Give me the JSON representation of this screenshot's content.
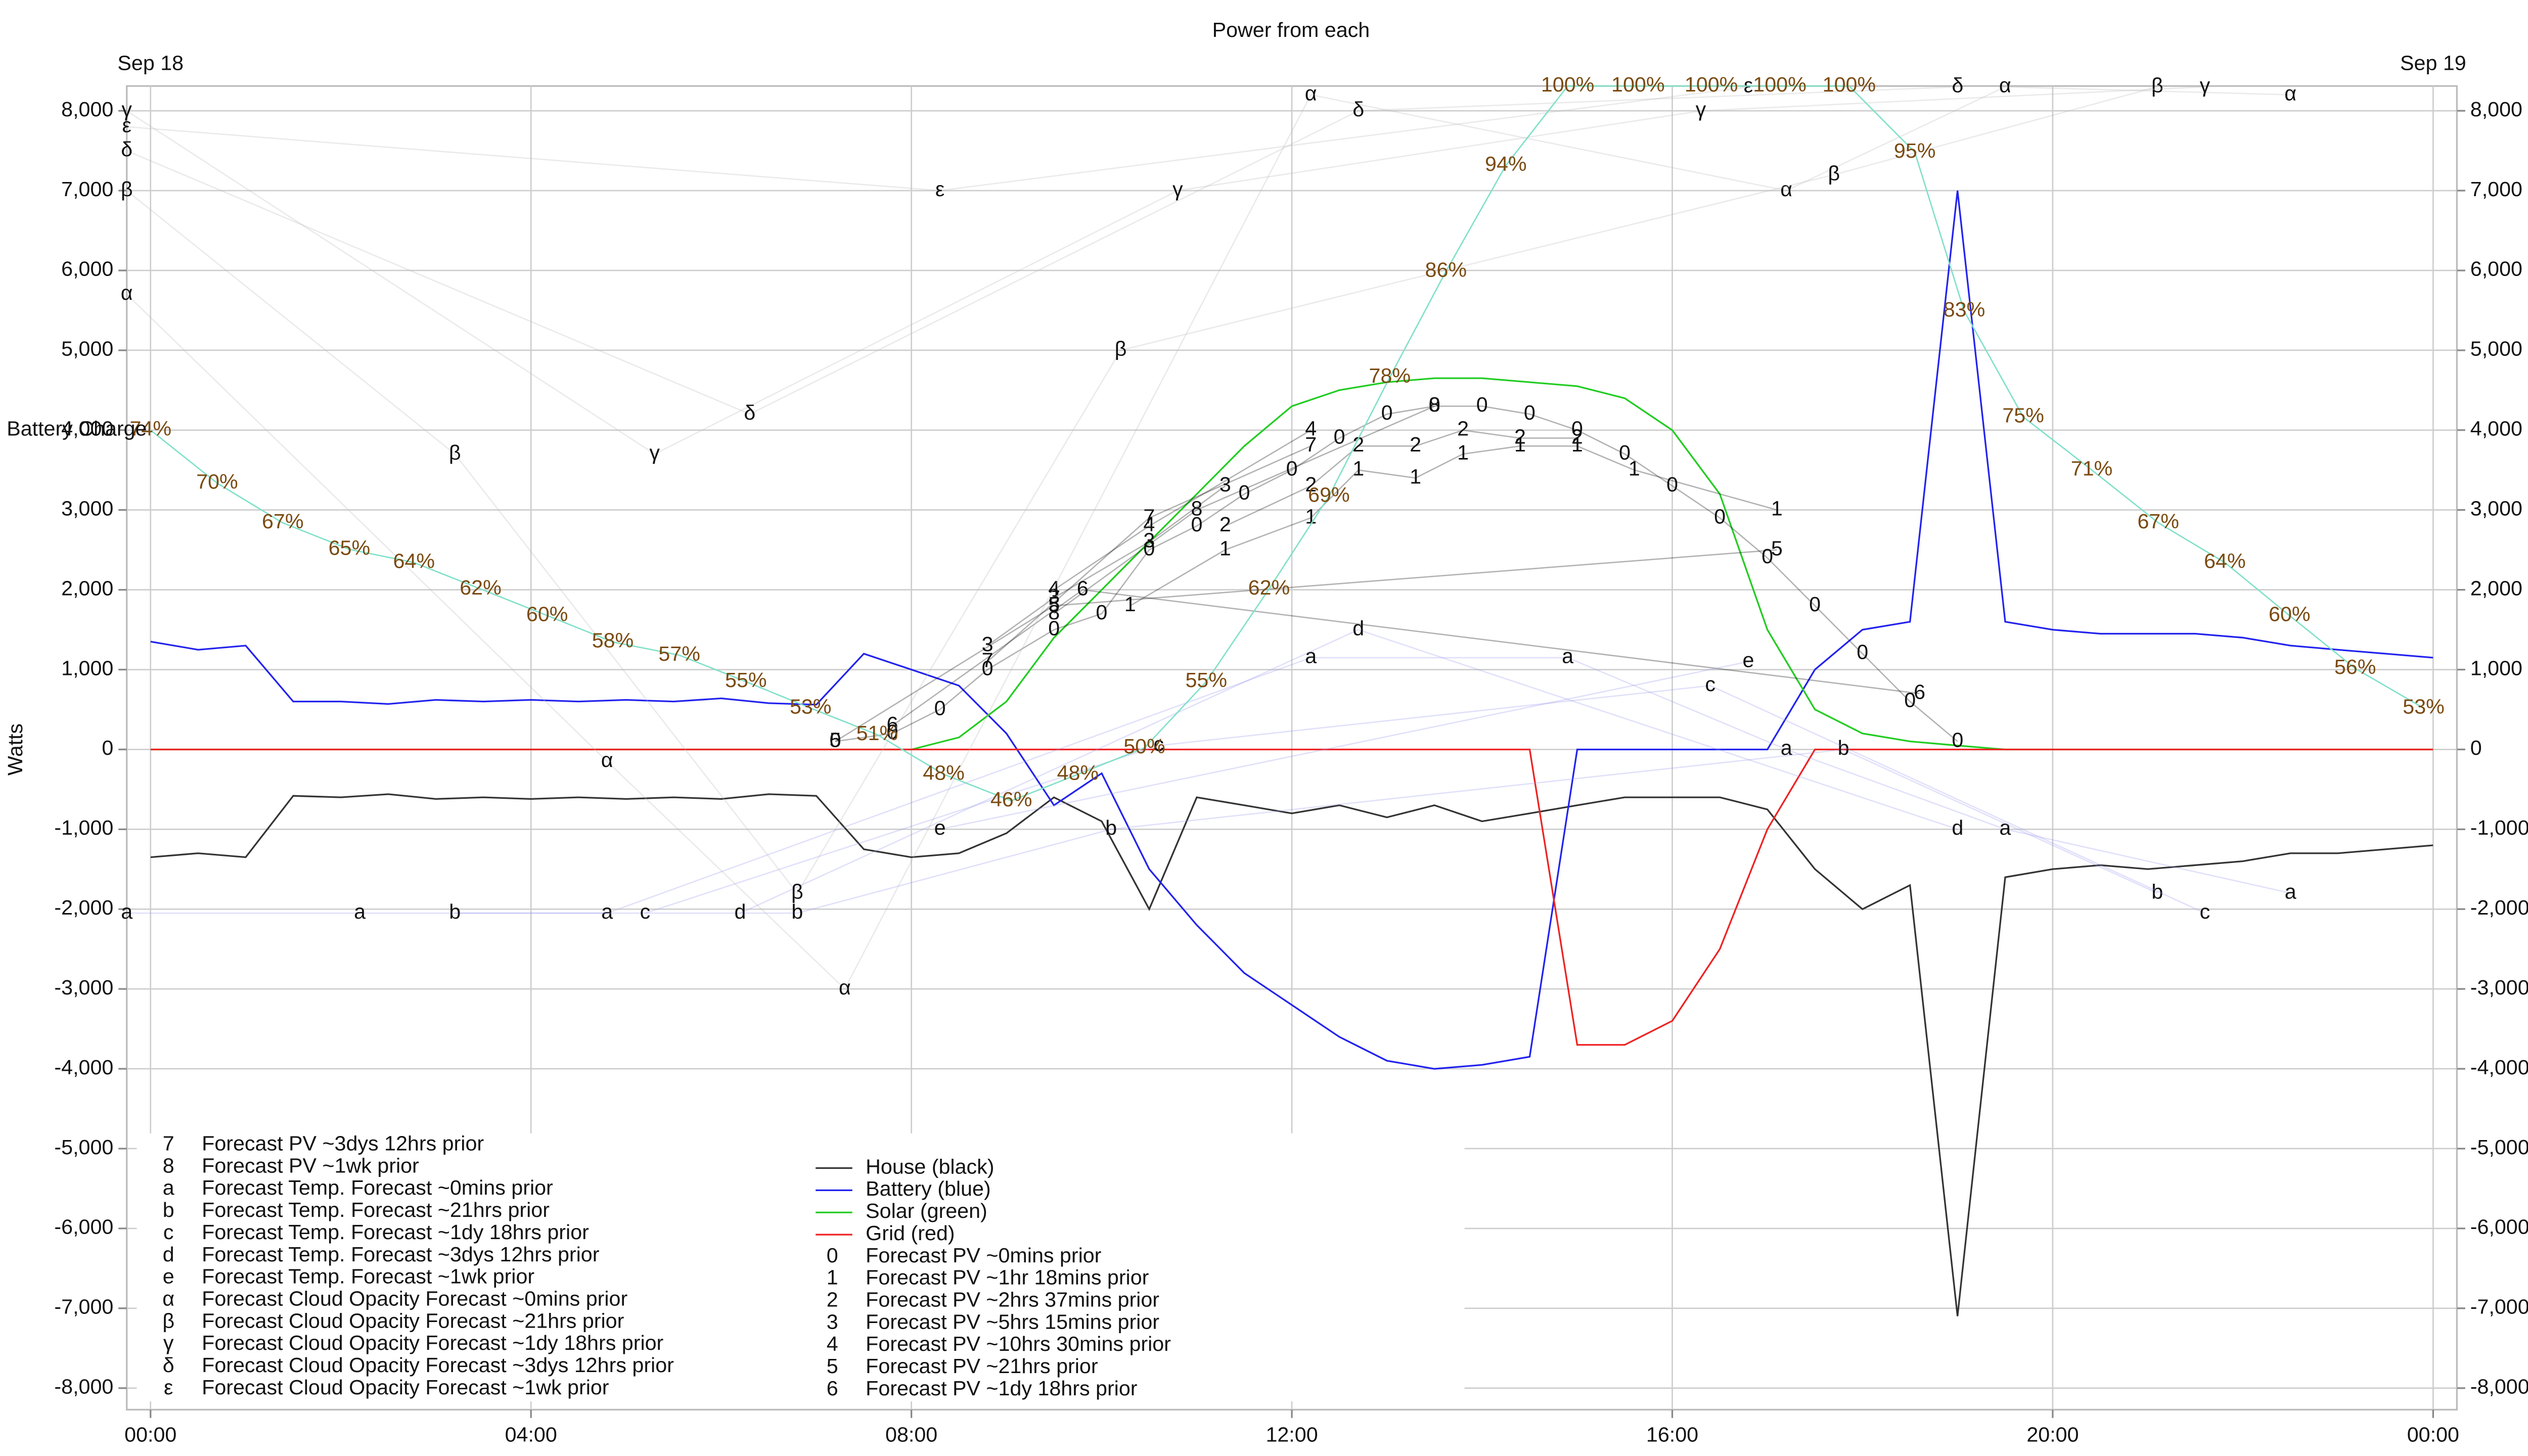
{
  "chart_data": {
    "type": "line",
    "title": "Power from each",
    "ylabel": "Watts",
    "y2label": "Battery Charge",
    "date_labels": [
      {
        "value": 0,
        "label": "Sep 18"
      },
      {
        "value": 24,
        "label": "Sep 19"
      }
    ],
    "xlim": [
      -0.25,
      24.25
    ],
    "xticks": [
      {
        "value": 0,
        "label": "00:00"
      },
      {
        "value": 4,
        "label": "04:00"
      },
      {
        "value": 8,
        "label": "08:00"
      },
      {
        "value": 12,
        "label": "12:00"
      },
      {
        "value": 16,
        "label": "16:00"
      },
      {
        "value": 20,
        "label": "20:00"
      },
      {
        "value": 24,
        "label": "00:00"
      }
    ],
    "ylim": [
      -8270,
      8310
    ],
    "yticks": [
      {
        "value": -8000,
        "label": "-8,000"
      },
      {
        "value": -7000,
        "label": "-7,000"
      },
      {
        "value": -6000,
        "label": "-6,000"
      },
      {
        "value": -5000,
        "label": "-5,000"
      },
      {
        "value": -4000,
        "label": "-4,000"
      },
      {
        "value": -3000,
        "label": "-3,000"
      },
      {
        "value": -2000,
        "label": "-2,000"
      },
      {
        "value": -1000,
        "label": "-1,000"
      },
      0,
      {
        "value": 1000,
        "label": "1,000"
      },
      {
        "value": 2000,
        "label": "2,000"
      },
      {
        "value": 3000,
        "label": "3,000"
      },
      {
        "value": 4000,
        "label": "4,000"
      },
      {
        "value": 5000,
        "label": "5,000"
      },
      {
        "value": 6000,
        "label": "6,000"
      },
      {
        "value": 7000,
        "label": "7,000"
      },
      {
        "value": 8000,
        "label": "8,000"
      }
    ],
    "y2lim": [
      0,
      100
    ],
    "grid": true,
    "x": [
      0,
      0.5,
      1,
      1.5,
      2,
      2.5,
      3,
      3.5,
      4,
      4.5,
      5,
      5.5,
      6,
      6.5,
      7,
      7.5,
      8,
      8.5,
      9,
      9.5,
      10,
      10.5,
      11,
      11.5,
      12,
      12.5,
      13,
      13.5,
      14,
      14.5,
      15,
      15.5,
      16,
      16.5,
      17,
      17.5,
      18,
      18.5,
      19,
      19.5,
      20,
      20.5,
      21,
      21.5,
      22,
      22.5,
      23,
      23.5,
      24
    ],
    "series": [
      {
        "name": "House (black)",
        "color": "#333333",
        "values": [
          -1350,
          -1300,
          -1350,
          -580,
          -600,
          -560,
          -620,
          -600,
          -620,
          -600,
          -620,
          -600,
          -620,
          -560,
          -580,
          -1250,
          -1350,
          -1300,
          -1050,
          -600,
          -900,
          -2000,
          -600,
          -700,
          -800,
          -700,
          -850,
          -700,
          -900,
          -800,
          -700,
          -600,
          -600,
          -600,
          -750,
          -1500,
          -2000,
          -1700,
          -7100,
          -1600,
          -1500,
          -1450,
          -1500,
          -1450,
          -1400,
          -1300,
          -1300,
          -1250,
          -1200
        ]
      },
      {
        "name": "Battery (blue)",
        "color": "#2222ee",
        "values": [
          1350,
          1250,
          1300,
          600,
          600,
          570,
          620,
          600,
          620,
          600,
          620,
          600,
          640,
          580,
          560,
          1200,
          1000,
          800,
          200,
          -700,
          -300,
          -1500,
          -2200,
          -2800,
          -3200,
          -3600,
          -3900,
          -4000,
          -3950,
          -3850,
          0,
          0,
          0,
          0,
          0,
          1000,
          1500,
          1600,
          7000,
          1600,
          1500,
          1450,
          1450,
          1450,
          1400,
          1300,
          1250,
          1200,
          1150
        ]
      },
      {
        "name": "Solar (green)",
        "color": "#22cc22",
        "values": [
          0,
          0,
          0,
          0,
          0,
          0,
          0,
          0,
          0,
          0,
          0,
          0,
          0,
          0,
          0,
          0,
          0,
          150,
          600,
          1400,
          2000,
          2600,
          3200,
          3800,
          4300,
          4500,
          4600,
          4650,
          4650,
          4600,
          4550,
          4400,
          4000,
          3200,
          1500,
          500,
          200,
          100,
          50,
          0,
          0,
          0,
          0,
          0,
          0,
          0,
          0,
          0,
          0
        ]
      },
      {
        "name": "Grid (red)",
        "color": "#ee2222",
        "values": [
          0,
          0,
          0,
          0,
          0,
          0,
          0,
          0,
          0,
          0,
          0,
          0,
          0,
          0,
          0,
          0,
          0,
          0,
          0,
          0,
          0,
          0,
          0,
          0,
          0,
          0,
          0,
          0,
          0,
          0,
          -3700,
          -3700,
          -3400,
          -2500,
          -1000,
          0,
          0,
          0,
          0,
          0,
          0,
          0,
          0,
          0,
          0,
          0,
          0,
          0,
          0
        ]
      },
      {
        "name": "Forecast PV ~0mins prior",
        "symbol": "0",
        "color": "#000000",
        "x": [
          7.2,
          7.8,
          8.3,
          8.8,
          9.5,
          10,
          10.5,
          11,
          11.5,
          12,
          12.5,
          13,
          13.5,
          14,
          14.5,
          15,
          15.5,
          16,
          16.5,
          17,
          17.5,
          18,
          18.5,
          19
        ],
        "values": [
          100,
          200,
          500,
          1000,
          1500,
          1700,
          2500,
          2800,
          3200,
          3500,
          3900,
          4200,
          4300,
          4300,
          4200,
          4000,
          3700,
          3300,
          2900,
          2400,
          1800,
          1200,
          600,
          100
        ]
      },
      {
        "name": "Forecast PV ~1hr 18mins prior",
        "symbol": "1",
        "color": "#000000",
        "x": [
          10.3,
          11.3,
          12.2,
          12.7,
          13.3,
          13.8,
          14.4,
          15,
          15.6,
          17.1
        ],
        "values": [
          1800,
          2500,
          2900,
          3500,
          3400,
          3700,
          3800,
          3800,
          3500,
          3000
        ]
      },
      {
        "name": "Forecast PV ~2hrs 37mins prior",
        "symbol": "2",
        "color": "#000000",
        "x": [
          11.3,
          12.2,
          12.7,
          13.3,
          13.8,
          14.4,
          15
        ],
        "values": [
          2800,
          3300,
          3800,
          3800,
          4000,
          3900,
          3900
        ]
      },
      {
        "name": "Forecast PV ~5hrs 15mins prior",
        "symbol": "3",
        "color": "#000000",
        "x": [
          8.8,
          9.5,
          10.5,
          11.3
        ],
        "values": [
          1300,
          1900,
          2600,
          3300
        ]
      },
      {
        "name": "Forecast PV ~10hrs 30mins prior",
        "symbol": "4",
        "color": "#000000",
        "x": [
          9.5,
          10.5,
          12.2
        ],
        "values": [
          2000,
          2800,
          4000
        ]
      },
      {
        "name": "Forecast PV ~21hrs prior",
        "symbol": "5",
        "color": "#000000",
        "x": [
          7.2,
          9.5,
          17.1
        ],
        "values": [
          100,
          1800,
          2500
        ]
      },
      {
        "name": "Forecast PV ~1dy 18hrs prior",
        "symbol": "6",
        "color": "#000000",
        "x": [
          7.8,
          9.8,
          18.6
        ],
        "values": [
          300,
          2000,
          700
        ]
      },
      {
        "name": "Forecast PV ~3dys 12hrs prior",
        "symbol": "7",
        "color": "#000000",
        "x": [
          8.8,
          10.5,
          12.2
        ],
        "values": [
          1100,
          2900,
          3800
        ]
      },
      {
        "name": "Forecast PV ~1wk prior",
        "symbol": "8",
        "color": "#000000",
        "x": [
          9.5,
          11,
          13.5
        ],
        "values": [
          1700,
          3000,
          4300
        ]
      },
      {
        "name": "Forecast Temp. Forecast ~0mins prior",
        "symbol": "a",
        "color": "#9999ee",
        "x": [
          -0.25,
          2.2,
          4.8,
          12.2,
          14.9,
          17.2,
          19.5,
          22.5
        ],
        "values": [
          -2050,
          -2050,
          -2050,
          1150,
          1150,
          0,
          -1000,
          -1800
        ]
      },
      {
        "name": "Forecast Temp. Forecast ~21hrs prior",
        "symbol": "b",
        "color": "#9999ee",
        "x": [
          3.2,
          6.8,
          10.1,
          17.8,
          21.1
        ],
        "values": [
          -2050,
          -2050,
          -1000,
          0,
          -1800
        ]
      },
      {
        "name": "Forecast Temp. Forecast ~1dy 18hrs prior",
        "symbol": "c",
        "color": "#9999ee",
        "x": [
          5.2,
          10.6,
          16.4,
          21.6
        ],
        "values": [
          -2050,
          50,
          800,
          -2050
        ]
      },
      {
        "name": "Forecast Temp. Forecast ~3dys 12hrs prior",
        "symbol": "d",
        "color": "#9999ee",
        "x": [
          6.2,
          12.7,
          19
        ],
        "values": [
          -2050,
          1500,
          -1000
        ]
      },
      {
        "name": "Forecast Temp. Forecast ~1wk prior",
        "symbol": "e",
        "color": "#9999ee",
        "x": [
          8.3,
          16.8
        ],
        "values": [
          -1000,
          1100
        ]
      },
      {
        "name": "Forecast Cloud Opacity Forecast ~0mins prior",
        "symbol": "α",
        "color": "#bbbbbb",
        "x": [
          -0.25,
          4.8,
          7.3,
          12.2,
          17.2,
          19.5,
          22.5
        ],
        "values": [
          5700,
          -150,
          -3000,
          8200,
          7000,
          8300,
          8200
        ]
      },
      {
        "name": "Forecast Cloud Opacity Forecast ~21hrs prior",
        "symbol": "β",
        "color": "#bbbbbb",
        "x": [
          -0.25,
          3.2,
          6.8,
          10.2,
          17.7,
          21.1
        ],
        "values": [
          7000,
          3700,
          -1800,
          5000,
          7200,
          8300
        ]
      },
      {
        "name": "Forecast Cloud Opacity Forecast ~1dy 18hrs prior",
        "symbol": "γ",
        "color": "#bbbbbb",
        "x": [
          -0.25,
          5.3,
          10.8,
          16.3,
          21.6
        ],
        "values": [
          8000,
          3700,
          7000,
          8000,
          8300
        ]
      },
      {
        "name": "Forecast Cloud Opacity Forecast ~3dys 12hrs prior",
        "symbol": "δ",
        "color": "#bbbbbb",
        "x": [
          -0.25,
          6.3,
          12.7,
          19
        ],
        "values": [
          7500,
          4200,
          8000,
          8300
        ]
      },
      {
        "name": "Forecast Cloud Opacity Forecast ~1wk prior",
        "symbol": "ε",
        "color": "#bbbbbb",
        "x": [
          -0.25,
          8.3,
          16.8
        ],
        "values": [
          7800,
          7000,
          8300
        ]
      }
    ],
    "battery_charge": {
      "axis": "y2",
      "color": "#7a4a10",
      "x": [
        0,
        0.7,
        1.39,
        2.09,
        2.77,
        3.47,
        4.17,
        4.86,
        5.56,
        6.26,
        6.94,
        7.64,
        8.34,
        9.05,
        9.75,
        10.45,
        11.1,
        11.76,
        12.39,
        13.03,
        13.62,
        14.25,
        14.9,
        15.64,
        16.41,
        17.13,
        17.86,
        18.55,
        19.07,
        19.69,
        20.41,
        21.11,
        21.81,
        22.49,
        23.18,
        23.9
      ],
      "values": [
        74,
        70,
        67,
        65,
        64,
        62,
        60,
        58,
        57,
        55,
        53,
        51,
        48,
        46,
        48,
        50,
        55,
        62,
        69,
        78,
        86,
        94,
        100,
        100,
        100,
        100,
        100,
        95,
        83,
        75,
        71,
        67,
        64,
        60,
        56,
        53
      ],
      "value_labels": [
        "74%",
        "70%",
        "67%",
        "65%",
        "64%",
        "62%",
        "60%",
        "58%",
        "57%",
        "55%",
        "53%",
        "51%",
        "48%",
        "46%",
        "48%",
        "50%",
        "55%",
        "62%",
        "69%",
        "78%",
        "86%",
        "94%",
        "100%",
        "100%",
        "100%",
        "100%",
        "100%",
        "95%",
        "83%",
        "75%",
        "71%",
        "67%",
        "64%",
        "60%",
        "56%",
        "53%"
      ]
    }
  }
}
